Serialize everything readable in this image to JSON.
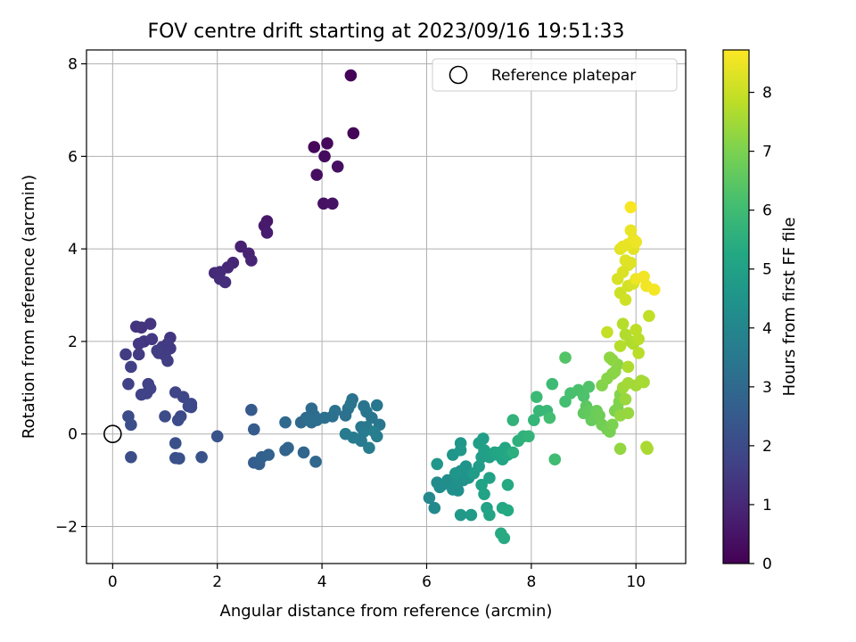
{
  "chart_data": {
    "type": "scatter",
    "title": "FOV centre drift starting at 2023/09/16 19:51:33",
    "xlabel": "Angular distance from reference (arcmin)",
    "ylabel": "Rotation from reference (arcmin)",
    "xlim": [
      -0.5,
      10.95
    ],
    "ylim": [
      -2.8,
      8.3
    ],
    "xticks": [
      0,
      2,
      4,
      6,
      8,
      10
    ],
    "yticks": [
      -2,
      0,
      2,
      4,
      6,
      8
    ],
    "xtick_labels": [
      "0",
      "2",
      "4",
      "6",
      "8",
      "10"
    ],
    "ytick_labels": [
      "−2",
      "0",
      "2",
      "4",
      "6",
      "8"
    ],
    "grid": true,
    "colormap": "viridis",
    "colorbar": {
      "label": "Hours from first FF file",
      "range": [
        0,
        8.72
      ],
      "ticks": [
        0,
        1,
        2,
        3,
        4,
        5,
        6,
        7,
        8
      ],
      "tick_labels": [
        "0",
        "1",
        "2",
        "3",
        "4",
        "5",
        "6",
        "7",
        "8"
      ]
    },
    "legend": {
      "position": "top-right",
      "entries": [
        {
          "label": "Reference platepar",
          "marker": "open-circle"
        }
      ]
    },
    "reference_point": {
      "x": 0,
      "y": 0
    },
    "points": [
      [
        4.55,
        7.75,
        0.05
      ],
      [
        4.6,
        6.5,
        0.1
      ],
      [
        3.85,
        6.2,
        0.15
      ],
      [
        4.1,
        6.28,
        0.2
      ],
      [
        4.05,
        6.0,
        0.25
      ],
      [
        3.9,
        5.6,
        0.3
      ],
      [
        4.3,
        5.78,
        0.35
      ],
      [
        4.03,
        4.98,
        0.4
      ],
      [
        4.2,
        4.98,
        0.45
      ],
      [
        2.95,
        4.6,
        0.6
      ],
      [
        2.9,
        4.5,
        0.65
      ],
      [
        2.95,
        4.35,
        0.7
      ],
      [
        2.45,
        4.05,
        0.8
      ],
      [
        2.6,
        3.9,
        0.85
      ],
      [
        2.65,
        3.75,
        0.9
      ],
      [
        2.3,
        3.7,
        0.95
      ],
      [
        2.2,
        3.6,
        1.0
      ],
      [
        1.95,
        3.48,
        1.05
      ],
      [
        2.05,
        3.5,
        1.1
      ],
      [
        2.05,
        3.35,
        1.15
      ],
      [
        2.15,
        3.28,
        1.2
      ],
      [
        0.45,
        2.32,
        1.3
      ],
      [
        0.72,
        2.38,
        1.35
      ],
      [
        0.55,
        2.3,
        1.3
      ],
      [
        1.1,
        2.08,
        1.4
      ],
      [
        0.6,
        2.0,
        1.4
      ],
      [
        0.5,
        1.95,
        1.45
      ],
      [
        0.75,
        2.05,
        1.45
      ],
      [
        0.95,
        1.88,
        1.5
      ],
      [
        1.1,
        1.85,
        1.5
      ],
      [
        1.05,
        1.95,
        1.5
      ],
      [
        0.88,
        1.75,
        1.55
      ],
      [
        0.25,
        1.72,
        1.55
      ],
      [
        0.5,
        1.72,
        1.55
      ],
      [
        1.0,
        1.7,
        1.55
      ],
      [
        1.05,
        1.58,
        1.6
      ],
      [
        0.85,
        1.8,
        1.6
      ],
      [
        0.35,
        1.45,
        1.65
      ],
      [
        0.3,
        1.08,
        1.7
      ],
      [
        0.68,
        1.08,
        1.7
      ],
      [
        0.72,
        0.98,
        1.75
      ],
      [
        0.65,
        0.88,
        1.75
      ],
      [
        0.55,
        0.85,
        1.75
      ],
      [
        1.2,
        0.9,
        1.8
      ],
      [
        1.35,
        0.8,
        1.85
      ],
      [
        1.5,
        0.65,
        1.9
      ],
      [
        1.5,
        0.58,
        1.9
      ],
      [
        1.45,
        0.6,
        1.95
      ],
      [
        1.3,
        0.38,
        1.95
      ],
      [
        1.25,
        0.3,
        2.0
      ],
      [
        1.0,
        0.38,
        2.05
      ],
      [
        0.3,
        0.38,
        2.05
      ],
      [
        0.35,
        0.2,
        2.1
      ],
      [
        0.35,
        -0.5,
        2.1
      ],
      [
        1.2,
        -0.2,
        2.15
      ],
      [
        1.2,
        -0.52,
        2.2
      ],
      [
        1.27,
        -0.53,
        2.2
      ],
      [
        1.7,
        -0.5,
        2.25
      ],
      [
        2.0,
        -0.05,
        2.3
      ],
      [
        2.65,
        0.52,
        2.5
      ],
      [
        2.7,
        0.1,
        2.55
      ],
      [
        2.7,
        -0.62,
        2.6
      ],
      [
        2.8,
        -0.65,
        2.65
      ],
      [
        2.85,
        -0.5,
        2.7
      ],
      [
        2.98,
        -0.45,
        2.75
      ],
      [
        3.3,
        -0.35,
        2.8
      ],
      [
        3.35,
        -0.3,
        2.85
      ],
      [
        3.65,
        -0.4,
        2.9
      ],
      [
        3.88,
        -0.6,
        2.95
      ],
      [
        3.3,
        0.25,
        3.0
      ],
      [
        3.6,
        0.25,
        3.0
      ],
      [
        3.7,
        0.35,
        3.05
      ],
      [
        3.8,
        0.25,
        3.05
      ],
      [
        3.85,
        0.4,
        3.1
      ],
      [
        3.8,
        0.55,
        3.1
      ],
      [
        3.75,
        0.3,
        3.15
      ],
      [
        3.9,
        0.3,
        3.15
      ],
      [
        4.05,
        0.35,
        3.2
      ],
      [
        4.2,
        0.38,
        3.2
      ],
      [
        4.25,
        0.5,
        3.25
      ],
      [
        4.45,
        0.4,
        3.25
      ],
      [
        4.5,
        0.55,
        3.3
      ],
      [
        4.58,
        0.75,
        3.3
      ],
      [
        4.55,
        0.65,
        3.35
      ],
      [
        4.8,
        0.6,
        3.35
      ],
      [
        4.85,
        0.48,
        3.4
      ],
      [
        4.95,
        0.35,
        3.4
      ],
      [
        5.05,
        0.62,
        3.45
      ],
      [
        5.1,
        0.2,
        3.45
      ],
      [
        4.75,
        0.15,
        3.5
      ],
      [
        4.85,
        0.15,
        3.5
      ],
      [
        4.8,
        0.05,
        3.55
      ],
      [
        4.45,
        0.0,
        3.55
      ],
      [
        4.6,
        -0.08,
        3.6
      ],
      [
        4.75,
        -0.15,
        3.6
      ],
      [
        5.05,
        -0.05,
        3.65
      ],
      [
        4.9,
        -0.3,
        3.65
      ],
      [
        5.0,
        0.05,
        3.7
      ],
      [
        6.05,
        -1.38,
        4.1
      ],
      [
        6.15,
        -1.6,
        4.15
      ],
      [
        6.2,
        -1.05,
        4.2
      ],
      [
        6.3,
        -1.1,
        4.25
      ],
      [
        6.25,
        -1.15,
        4.25
      ],
      [
        6.4,
        -1.0,
        4.3
      ],
      [
        6.5,
        -1.2,
        4.35
      ],
      [
        6.6,
        -1.22,
        4.35
      ],
      [
        6.6,
        -1.05,
        4.4
      ],
      [
        6.7,
        -1.0,
        4.45
      ],
      [
        6.65,
        -0.8,
        4.45
      ],
      [
        6.75,
        -0.7,
        4.5
      ],
      [
        6.8,
        -0.95,
        4.5
      ],
      [
        6.55,
        -0.85,
        4.55
      ],
      [
        6.5,
        -0.45,
        4.55
      ],
      [
        6.2,
        -0.65,
        4.6
      ],
      [
        6.65,
        -0.2,
        4.6
      ],
      [
        6.65,
        -0.35,
        4.65
      ],
      [
        6.65,
        -1.75,
        4.7
      ],
      [
        6.85,
        -1.75,
        4.75
      ],
      [
        6.9,
        -0.85,
        4.8
      ],
      [
        7.0,
        -0.7,
        4.8
      ],
      [
        7.05,
        -0.5,
        4.85
      ],
      [
        7.1,
        -0.4,
        4.85
      ],
      [
        7.0,
        -0.2,
        4.9
      ],
      [
        7.08,
        -0.1,
        4.9
      ],
      [
        7.1,
        -0.35,
        4.95
      ],
      [
        7.2,
        -0.5,
        4.95
      ],
      [
        7.2,
        -0.95,
        5.0
      ],
      [
        7.05,
        -1.1,
        5.0
      ],
      [
        7.1,
        -1.3,
        5.05
      ],
      [
        7.15,
        -1.6,
        5.05
      ],
      [
        7.2,
        -1.75,
        5.1
      ],
      [
        7.3,
        -0.4,
        5.1
      ],
      [
        7.35,
        -0.45,
        5.15
      ],
      [
        7.45,
        -0.55,
        5.15
      ],
      [
        7.4,
        -0.4,
        5.2
      ],
      [
        7.5,
        -0.3,
        5.2
      ],
      [
        7.55,
        -0.45,
        5.25
      ],
      [
        7.45,
        -1.6,
        5.25
      ],
      [
        7.55,
        -1.65,
        5.3
      ],
      [
        7.55,
        -1.1,
        5.3
      ],
      [
        7.42,
        -2.15,
        5.35
      ],
      [
        7.48,
        -2.25,
        5.35
      ],
      [
        7.65,
        -0.4,
        5.5
      ],
      [
        7.75,
        -0.15,
        5.55
      ],
      [
        7.85,
        -0.05,
        5.6
      ],
      [
        7.65,
        0.3,
        5.65
      ],
      [
        7.95,
        -0.05,
        5.7
      ],
      [
        8.05,
        0.3,
        5.75
      ],
      [
        8.15,
        0.5,
        5.8
      ],
      [
        8.3,
        0.5,
        5.85
      ],
      [
        8.1,
        0.8,
        5.9
      ],
      [
        8.4,
        1.08,
        5.95
      ],
      [
        8.45,
        -0.55,
        6.0
      ],
      [
        8.35,
        0.35,
        6.05
      ],
      [
        8.65,
        0.7,
        6.1
      ],
      [
        8.75,
        0.88,
        6.15
      ],
      [
        8.9,
        0.95,
        6.2
      ],
      [
        9.0,
        0.82,
        6.25
      ],
      [
        9.1,
        1.02,
        6.3
      ],
      [
        8.65,
        1.65,
        6.35
      ],
      [
        9.05,
        0.6,
        6.5
      ],
      [
        9.0,
        0.45,
        6.55
      ],
      [
        9.1,
        0.5,
        6.6
      ],
      [
        9.15,
        0.3,
        6.65
      ],
      [
        9.2,
        0.35,
        6.7
      ],
      [
        9.25,
        0.5,
        6.75
      ],
      [
        9.3,
        0.4,
        6.8
      ],
      [
        9.35,
        0.2,
        6.85
      ],
      [
        9.45,
        0.1,
        6.9
      ],
      [
        9.5,
        0.05,
        6.95
      ],
      [
        9.55,
        0.2,
        7.0
      ],
      [
        9.6,
        0.5,
        7.0
      ],
      [
        9.65,
        0.55,
        7.05
      ],
      [
        9.68,
        0.7,
        7.05
      ],
      [
        9.7,
        0.85,
        7.1
      ],
      [
        9.35,
        1.05,
        7.1
      ],
      [
        9.45,
        1.2,
        7.15
      ],
      [
        9.55,
        1.3,
        7.15
      ],
      [
        9.6,
        1.35,
        7.2
      ],
      [
        9.65,
        1.5,
        7.2
      ],
      [
        9.55,
        1.6,
        7.25
      ],
      [
        9.5,
        1.65,
        7.25
      ],
      [
        9.7,
        0.4,
        7.3
      ],
      [
        9.7,
        -0.32,
        7.3
      ],
      [
        9.85,
        0.45,
        7.35
      ],
      [
        9.8,
        0.75,
        7.4
      ],
      [
        9.75,
        1.0,
        7.45
      ],
      [
        9.85,
        1.1,
        7.5
      ],
      [
        10.0,
        1.05,
        7.5
      ],
      [
        10.1,
        1.15,
        7.55
      ],
      [
        10.15,
        1.12,
        7.55
      ],
      [
        10.2,
        -0.28,
        7.6
      ],
      [
        10.22,
        -0.32,
        7.6
      ],
      [
        9.85,
        1.45,
        7.65
      ],
      [
        9.95,
        1.95,
        7.65
      ],
      [
        9.9,
        2.0,
        7.7
      ],
      [
        9.8,
        2.15,
        7.7
      ],
      [
        9.75,
        2.38,
        7.75
      ],
      [
        9.7,
        1.9,
        7.75
      ],
      [
        10.05,
        1.75,
        7.8
      ],
      [
        10.05,
        2.05,
        7.8
      ],
      [
        10.0,
        2.25,
        7.85
      ],
      [
        10.25,
        2.55,
        7.9
      ],
      [
        9.45,
        2.2,
        7.95
      ],
      [
        9.7,
        3.05,
        8.05
      ],
      [
        9.8,
        2.9,
        8.1
      ],
      [
        9.85,
        3.2,
        8.15
      ],
      [
        9.95,
        3.25,
        8.2
      ],
      [
        9.65,
        3.35,
        8.2
      ],
      [
        9.75,
        3.5,
        8.25
      ],
      [
        9.85,
        3.65,
        8.25
      ],
      [
        9.8,
        3.75,
        8.3
      ],
      [
        9.9,
        3.7,
        8.3
      ],
      [
        9.95,
        4.0,
        8.35
      ],
      [
        9.7,
        4.0,
        8.35
      ],
      [
        9.75,
        4.05,
        8.4
      ],
      [
        9.85,
        4.1,
        8.4
      ],
      [
        9.95,
        4.2,
        8.45
      ],
      [
        9.9,
        4.4,
        8.45
      ],
      [
        10.0,
        4.15,
        8.5
      ],
      [
        10.0,
        3.35,
        8.5
      ],
      [
        10.15,
        3.4,
        8.55
      ],
      [
        10.2,
        3.2,
        8.55
      ],
      [
        10.35,
        3.12,
        8.6
      ],
      [
        9.9,
        4.9,
        8.65
      ]
    ]
  }
}
